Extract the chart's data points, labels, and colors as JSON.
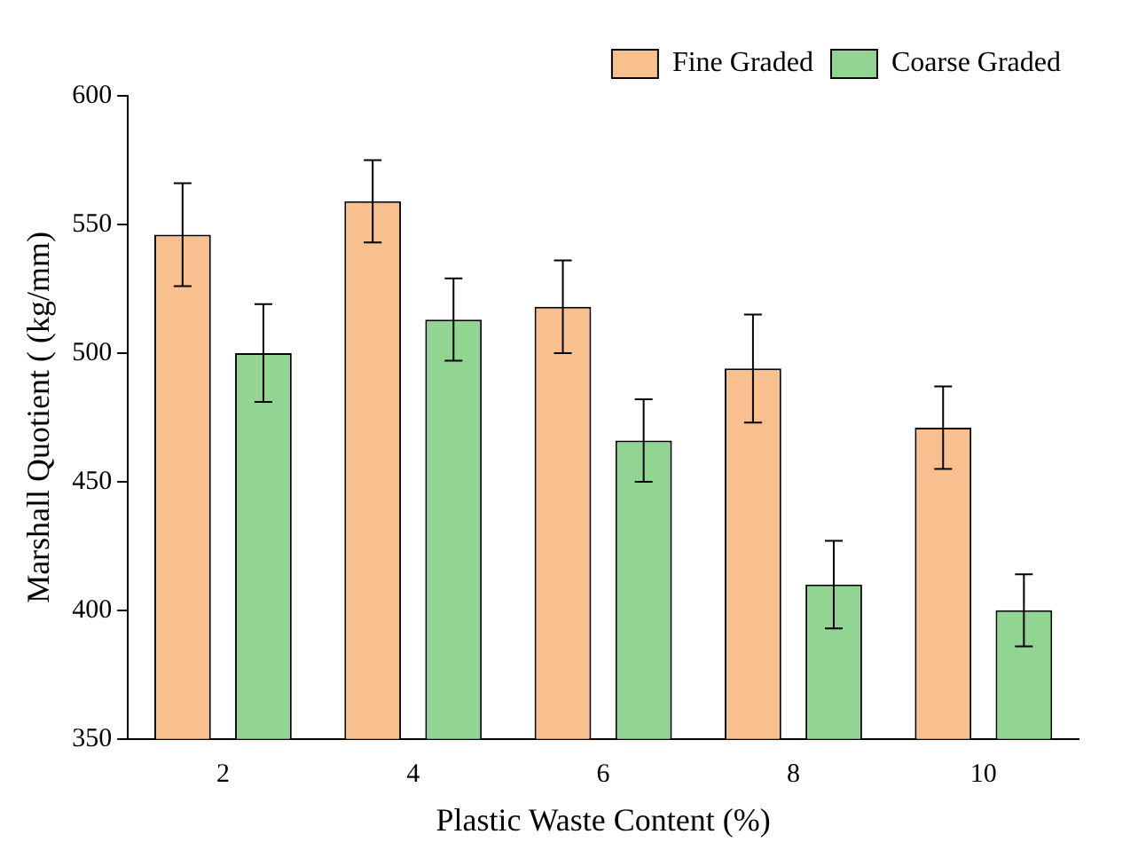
{
  "chart_data": {
    "type": "bar",
    "xlabel": "Plastic Waste Content (%)",
    "ylabel": "Marshall Quotient ( (kg/mm)",
    "categories": [
      "2",
      "4",
      "6",
      "8",
      "10"
    ],
    "series": [
      {
        "name": "Fine Graded",
        "color": "#f8c08e",
        "values": [
          546,
          559,
          518,
          494,
          471
        ],
        "errors": [
          20,
          16,
          18,
          21,
          16
        ]
      },
      {
        "name": "Coarse Graded",
        "color": "#92d593",
        "values": [
          500,
          513,
          466,
          410,
          400
        ],
        "errors": [
          19,
          16,
          16,
          17,
          14
        ]
      }
    ],
    "ylim": [
      350,
      600
    ],
    "yticks": [
      350,
      400,
      450,
      500,
      550,
      600
    ],
    "grid": false,
    "legend": "top right"
  }
}
